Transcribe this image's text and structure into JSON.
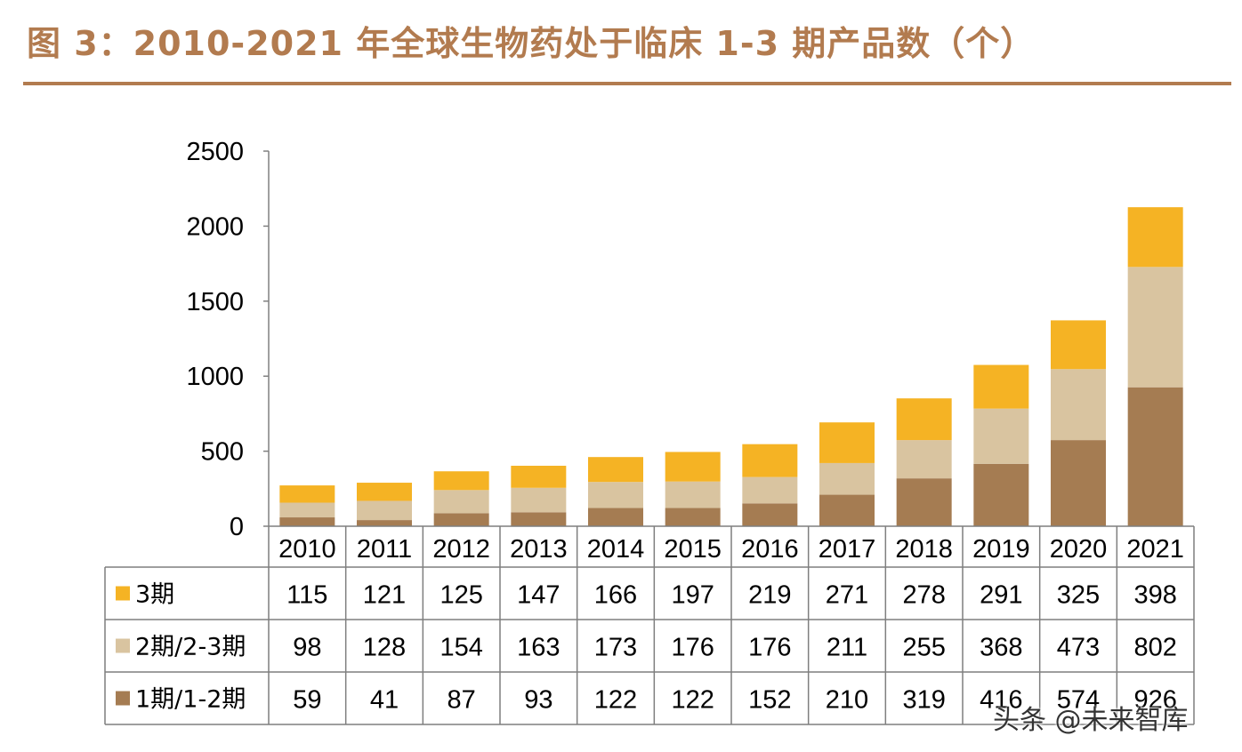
{
  "title": "图 3：2010-2021 年全球生物药处于临床 1-3 期产品数（个）",
  "watermark": "头条 @未来智库",
  "chart_data": {
    "type": "bar",
    "stacked": true,
    "categories": [
      "2010",
      "2011",
      "2012",
      "2013",
      "2014",
      "2015",
      "2016",
      "2017",
      "2018",
      "2019",
      "2020",
      "2021"
    ],
    "series": [
      {
        "name": "1期/1-2期",
        "color": "#a57c52",
        "values": [
          59,
          41,
          87,
          93,
          122,
          122,
          152,
          210,
          319,
          416,
          574,
          926
        ]
      },
      {
        "name": "2期/2-3期",
        "color": "#d9c4a0",
        "values": [
          98,
          128,
          154,
          163,
          173,
          176,
          176,
          211,
          255,
          368,
          473,
          802
        ]
      },
      {
        "name": "3期",
        "color": "#f5b324",
        "values": [
          115,
          121,
          125,
          147,
          166,
          197,
          219,
          271,
          278,
          291,
          325,
          398
        ]
      }
    ],
    "table_rows_order": [
      "3期",
      "2期/2-3期",
      "1期/1-2期"
    ],
    "ylim": [
      0,
      2500
    ],
    "yticks": [
      0,
      500,
      1000,
      1500,
      2000,
      2500
    ],
    "ytick_labels": [
      "0",
      "500",
      "1000",
      "1500",
      "2000",
      "2500"
    ],
    "xlabel": "",
    "ylabel": "",
    "grid": false,
    "legend": "data-table-left"
  }
}
